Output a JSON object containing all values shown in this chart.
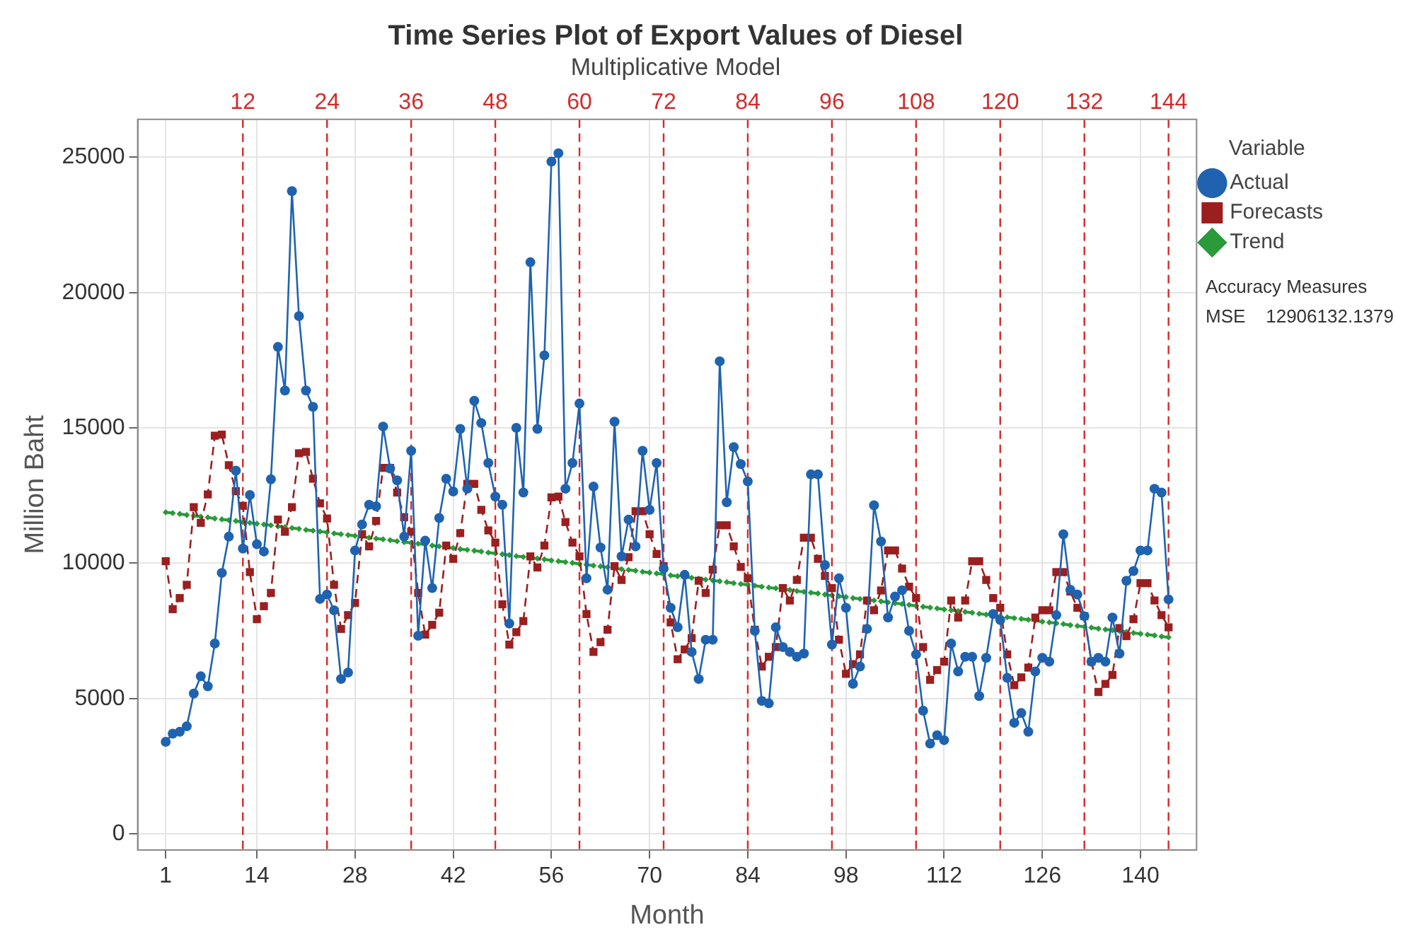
{
  "chart_data": {
    "type": "line",
    "title": "Time Series Plot of Export Values of Diesel",
    "subtitle": "Multiplicative Model",
    "xlabel": "Month",
    "ylabel": "Million Baht",
    "legend_title": "Variable",
    "legend": "right",
    "grid": true,
    "x": [
      1,
      2,
      3,
      4,
      5,
      6,
      7,
      8,
      9,
      10,
      11,
      12,
      13,
      14,
      15,
      16,
      17,
      18,
      19,
      20,
      21,
      22,
      23,
      24,
      25,
      26,
      27,
      28,
      29,
      30,
      31,
      32,
      33,
      34,
      35,
      36,
      37,
      38,
      39,
      40,
      41,
      42,
      43,
      44,
      45,
      46,
      47,
      48,
      49,
      50,
      51,
      52,
      53,
      54,
      55,
      56,
      57,
      58,
      59,
      60,
      61,
      62,
      63,
      64,
      65,
      66,
      67,
      68,
      69,
      70,
      71,
      72,
      73,
      74,
      75,
      76,
      77,
      78,
      79,
      80,
      81,
      82,
      83,
      84,
      85,
      86,
      87,
      88,
      89,
      90,
      91,
      92,
      93,
      94,
      95,
      96,
      97,
      98,
      99,
      100,
      101,
      102,
      103,
      104,
      105,
      106,
      107,
      108,
      109,
      110,
      111,
      112,
      113,
      114,
      115,
      116,
      117,
      118,
      119,
      120,
      121,
      122,
      123,
      124,
      125,
      126,
      127,
      128,
      129,
      130,
      131,
      132,
      133,
      134,
      135,
      136,
      137,
      138,
      139,
      140,
      141,
      142,
      143,
      144
    ],
    "xlim": [
      -3,
      148
    ],
    "xticks": [
      1,
      14,
      28,
      42,
      56,
      70,
      84,
      98,
      112,
      126,
      140
    ],
    "ylim": [
      -600,
      26400
    ],
    "yticks": [
      0,
      5000,
      10000,
      15000,
      20000,
      25000
    ],
    "series": [
      {
        "name": "Actual",
        "color": "#1f63b0",
        "marker": "circle",
        "line_style": "solid",
        "values": [
          3400,
          3700,
          3770,
          3970,
          5180,
          5820,
          5450,
          7030,
          9640,
          10980,
          13420,
          10540,
          12520,
          10700,
          10430,
          13100,
          17990,
          16380,
          23750,
          19130,
          16380,
          15780,
          8680,
          8840,
          8260,
          5720,
          5960,
          10470,
          11430,
          12160,
          12100,
          15050,
          13500,
          13060,
          10980,
          14150,
          7320,
          10830,
          9080,
          11670,
          13120,
          12650,
          14960,
          12750,
          16000,
          15180,
          13700,
          12460,
          12160,
          7770,
          15000,
          12610,
          21120,
          14960,
          17680,
          24840,
          25150,
          12750,
          13700,
          15900,
          9440,
          12830,
          10580,
          9020,
          15230,
          10250,
          11610,
          10620,
          14150,
          11970,
          13700,
          9800,
          8350,
          7630,
          9570,
          6720,
          5720,
          7170,
          7170,
          17460,
          12250,
          14290,
          13660,
          13020,
          7500,
          4910,
          4820,
          7630,
          6900,
          6720,
          6540,
          6660,
          13280,
          13280,
          9930,
          6990,
          9440,
          8350,
          5540,
          6180,
          7570,
          12140,
          10800,
          7990,
          8770,
          9000,
          7500,
          6630,
          4550,
          3330,
          3640,
          3460,
          7030,
          6000,
          6540,
          6540,
          5090,
          6500,
          8120,
          7900,
          5760,
          4100,
          4460,
          3770,
          6000,
          6500,
          6360,
          8080,
          11070,
          9020,
          8840,
          8040,
          6360,
          6500,
          6360,
          7990,
          6660,
          9350,
          9710,
          10470,
          10470,
          12750,
          12610,
          8660
        ]
      },
      {
        "name": "Forecasts",
        "color": "#9b1f1f",
        "marker": "square",
        "line_style": "dashed",
        "values": [
          10070,
          8300,
          8710,
          9200,
          12070,
          11490,
          12540,
          14710,
          14750,
          13620,
          12660,
          12120,
          9670,
          7930,
          8410,
          8900,
          11610,
          11160,
          12070,
          14060,
          14110,
          13120,
          12210,
          11650,
          9200,
          7570,
          8080,
          8530,
          11070,
          10620,
          11560,
          13520,
          13520,
          12610,
          11700,
          11160,
          8900,
          7360,
          7720,
          8170,
          10650,
          10160,
          11110,
          12930,
          12930,
          11970,
          11210,
          10760,
          8480,
          6990,
          7450,
          7860,
          10250,
          9840,
          10650,
          12430,
          12460,
          11520,
          10760,
          10250,
          8120,
          6720,
          7080,
          7540,
          9890,
          9380,
          10220,
          11920,
          11920,
          11070,
          10340,
          9890,
          7810,
          6450,
          6810,
          7230,
          9350,
          8900,
          9760,
          11400,
          11400,
          10620,
          9860,
          9440,
          7540,
          6180,
          6540,
          6900,
          9080,
          8620,
          9380,
          10940,
          10940,
          10160,
          9530,
          9080,
          7170,
          5910,
          6270,
          6630,
          8620,
          8260,
          8990,
          10470,
          10470,
          9800,
          9130,
          8710,
          6900,
          5690,
          6050,
          6360,
          8620,
          7990,
          8620,
          10070,
          10070,
          9380,
          8710,
          8350,
          6630,
          5490,
          5780,
          6140,
          7990,
          8260,
          8260,
          9670,
          9670,
          8950,
          8350,
          8040,
          6360,
          5240,
          5540,
          5870,
          7600,
          7300,
          7930,
          9260,
          9260,
          8620,
          8080,
          7630
        ]
      },
      {
        "name": "Trend",
        "color": "#2a9a3a",
        "marker": "diamond",
        "line_style": "dashed",
        "values": [
          11880,
          11850,
          11820,
          11780,
          11750,
          11720,
          11690,
          11650,
          11620,
          11590,
          11560,
          11520,
          11490,
          11460,
          11430,
          11400,
          11360,
          11330,
          11300,
          11270,
          11230,
          11200,
          11170,
          11140,
          11100,
          11070,
          11040,
          11010,
          10980,
          10940,
          10910,
          10880,
          10850,
          10810,
          10780,
          10750,
          10720,
          10680,
          10650,
          10620,
          10590,
          10560,
          10520,
          10490,
          10460,
          10430,
          10390,
          10360,
          10330,
          10300,
          10260,
          10230,
          10200,
          10170,
          10140,
          10100,
          10070,
          10040,
          10010,
          9970,
          9940,
          9910,
          9880,
          9850,
          9810,
          9780,
          9750,
          9720,
          9680,
          9650,
          9620,
          9590,
          9550,
          9520,
          9490,
          9460,
          9430,
          9390,
          9360,
          9330,
          9300,
          9260,
          9230,
          9200,
          9170,
          9130,
          9100,
          9070,
          9040,
          9010,
          8970,
          8940,
          8910,
          8880,
          8840,
          8810,
          8780,
          8750,
          8710,
          8680,
          8650,
          8620,
          8590,
          8550,
          8520,
          8490,
          8460,
          8420,
          8390,
          8360,
          8330,
          8290,
          8260,
          8230,
          8200,
          8170,
          8130,
          8100,
          8070,
          8040,
          8000,
          7970,
          7940,
          7910,
          7870,
          7840,
          7810,
          7780,
          7750,
          7710,
          7680,
          7650,
          7620,
          7580,
          7550,
          7520,
          7490,
          7460,
          7420,
          7390,
          7360,
          7330,
          7290,
          7260
        ]
      }
    ],
    "ref_lines": [
      {
        "axis": "x",
        "value": 12,
        "label": "12",
        "color": "#d42a2a",
        "line_style": "dashed"
      },
      {
        "axis": "x",
        "value": 24,
        "label": "24",
        "color": "#d42a2a",
        "line_style": "dashed"
      },
      {
        "axis": "x",
        "value": 36,
        "label": "36",
        "color": "#d42a2a",
        "line_style": "dashed"
      },
      {
        "axis": "x",
        "value": 48,
        "label": "48",
        "color": "#d42a2a",
        "line_style": "dashed"
      },
      {
        "axis": "x",
        "value": 60,
        "label": "60",
        "color": "#d42a2a",
        "line_style": "dashed"
      },
      {
        "axis": "x",
        "value": 72,
        "label": "72",
        "color": "#d42a2a",
        "line_style": "dashed"
      },
      {
        "axis": "x",
        "value": 84,
        "label": "84",
        "color": "#d42a2a",
        "line_style": "dashed"
      },
      {
        "axis": "x",
        "value": 96,
        "label": "96",
        "color": "#d42a2a",
        "line_style": "dashed"
      },
      {
        "axis": "x",
        "value": 108,
        "label": "108",
        "color": "#d42a2a",
        "line_style": "dashed"
      },
      {
        "axis": "x",
        "value": 120,
        "label": "120",
        "color": "#d42a2a",
        "line_style": "dashed"
      },
      {
        "axis": "x",
        "value": 132,
        "label": "132",
        "color": "#d42a2a",
        "line_style": "dashed"
      },
      {
        "axis": "x",
        "value": 144,
        "label": "144",
        "color": "#d42a2a",
        "line_style": "dashed"
      }
    ],
    "annotations": [
      "Accuracy Measures",
      "MSE    12906132.1379"
    ]
  }
}
